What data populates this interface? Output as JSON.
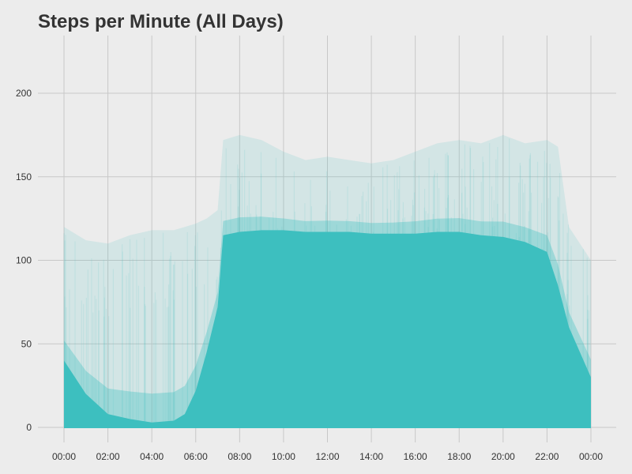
{
  "chart_data": {
    "type": "area",
    "title": "Steps per Minute (All Days)",
    "xlabel": "",
    "ylabel": "",
    "x_unit": "time of day (HH:MM)",
    "xlim": [
      "00:00",
      "24:00"
    ],
    "ylim": [
      0,
      230
    ],
    "grid": true,
    "legend": "none",
    "x_ticks": [
      "00:00",
      "02:00",
      "04:00",
      "06:00",
      "08:00",
      "10:00",
      "12:00",
      "14:00",
      "16:00",
      "18:00",
      "20:00",
      "22:00",
      "00:00"
    ],
    "y_ticks": [
      0,
      50,
      100,
      150,
      200
    ],
    "series_color": "#3dbfbf",
    "background_color": "#ececec",
    "grid_color": "#c8c8c8",
    "x": [
      "00:00",
      "01:00",
      "02:00",
      "03:00",
      "04:00",
      "05:00",
      "05:30",
      "06:00",
      "06:30",
      "07:00",
      "07:15",
      "08:00",
      "09:00",
      "10:00",
      "11:00",
      "12:00",
      "13:00",
      "14:00",
      "15:00",
      "16:00",
      "17:00",
      "18:00",
      "19:00",
      "20:00",
      "21:00",
      "22:00",
      "22:30",
      "23:00",
      "23:59"
    ],
    "series": [
      {
        "values": [
          40,
          20,
          8,
          5,
          3,
          4,
          8,
          22,
          45,
          72,
          115,
          117,
          118,
          118,
          117,
          117,
          117,
          116,
          116,
          116,
          117,
          117,
          115,
          114,
          111,
          105,
          85,
          60,
          30
        ]
      },
      {
        "values": [
          120,
          112,
          110,
          115,
          118,
          118,
          120,
          122,
          125,
          130,
          172,
          175,
          172,
          165,
          160,
          162,
          160,
          158,
          160,
          165,
          170,
          172,
          170,
          175,
          170,
          172,
          168,
          120,
          100
        ]
      }
    ]
  }
}
